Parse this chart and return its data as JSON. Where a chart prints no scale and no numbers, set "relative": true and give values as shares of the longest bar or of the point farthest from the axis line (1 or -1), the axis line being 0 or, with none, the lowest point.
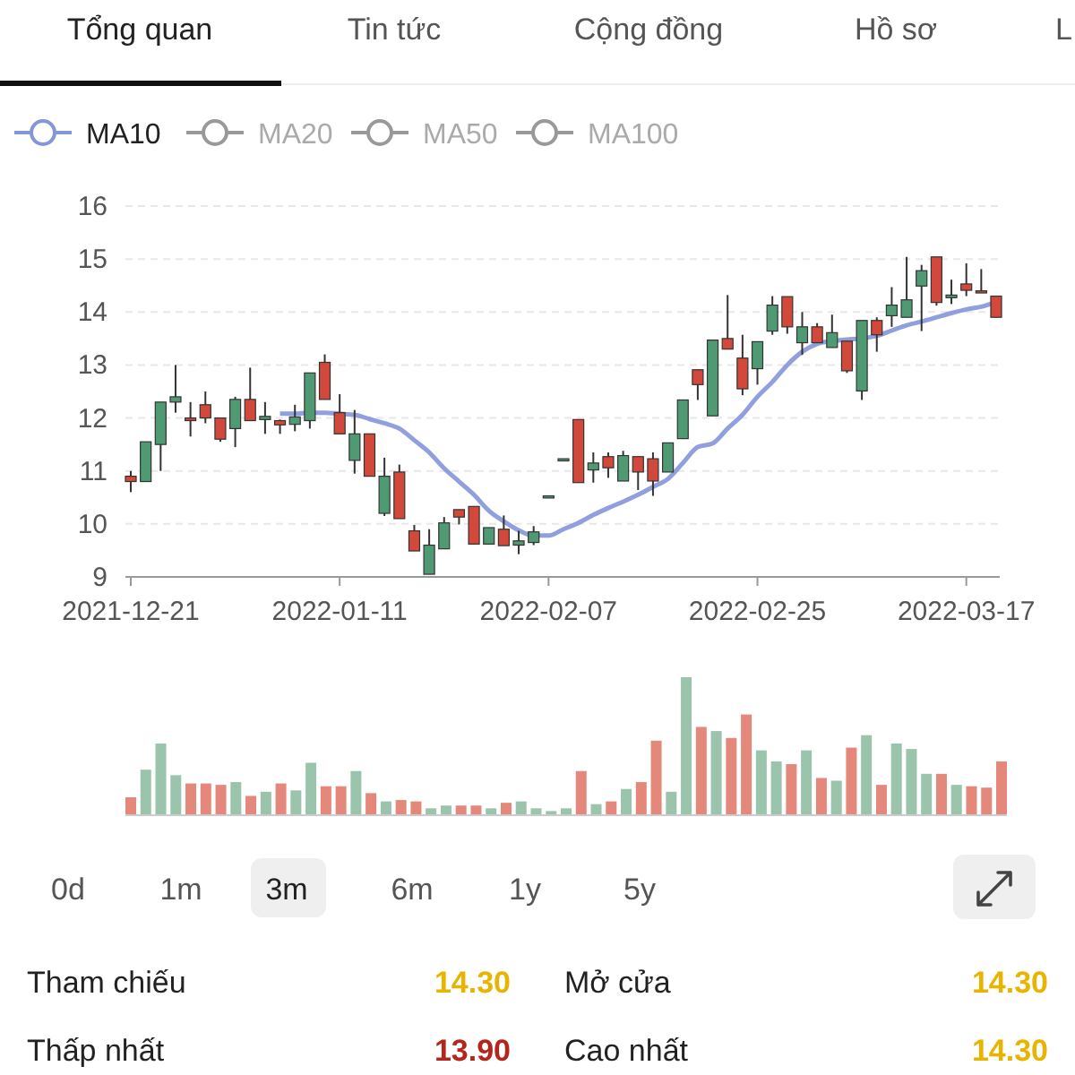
{
  "chart_data": [
    {
      "type": "other",
      "annotations": [
        "Tổng quan",
        "Tin tức",
        "Cộng đồng",
        "Hồ sơ",
        "L"
      ]
    },
    {
      "type": "candlestick",
      "legend": "top left",
      "grid": "y",
      "ylim": [
        9,
        16
      ],
      "yticks": [
        9,
        10,
        11,
        12,
        13,
        14,
        15,
        16
      ],
      "categories": [
        "2021-12-21",
        null,
        null,
        null,
        null,
        null,
        null,
        null,
        null,
        null,
        null,
        null,
        null,
        null,
        "2022-01-11",
        null,
        null,
        null,
        null,
        null,
        null,
        null,
        null,
        null,
        null,
        null,
        null,
        null,
        "2022-02-07",
        null,
        null,
        null,
        null,
        null,
        null,
        null,
        null,
        null,
        null,
        null,
        null,
        null,
        "2022-02-25",
        null,
        null,
        null,
        null,
        null,
        null,
        null,
        null,
        null,
        null,
        null,
        null,
        null,
        "2022-03-17",
        null,
        null
      ],
      "ohlc": [
        [
          10.9,
          11.0,
          10.6,
          10.8
        ],
        [
          10.8,
          11.55,
          10.8,
          11.55
        ],
        [
          11.5,
          12.3,
          11.0,
          12.3
        ],
        [
          12.3,
          13.0,
          12.1,
          12.4
        ],
        [
          12.0,
          12.3,
          11.65,
          11.95
        ],
        [
          12.25,
          12.5,
          11.9,
          12.0
        ],
        [
          12.0,
          12.0,
          11.55,
          11.6
        ],
        [
          11.8,
          12.4,
          11.45,
          12.35
        ],
        [
          12.35,
          12.95,
          11.95,
          11.95
        ],
        [
          11.97,
          12.3,
          11.7,
          12.03
        ],
        [
          11.95,
          11.97,
          11.7,
          11.87
        ],
        [
          11.88,
          12.25,
          11.75,
          12.02
        ],
        [
          11.95,
          12.85,
          11.8,
          12.85
        ],
        [
          13.05,
          13.2,
          12.35,
          12.35
        ],
        [
          12.1,
          12.45,
          11.7,
          11.7
        ],
        [
          11.2,
          12.15,
          10.95,
          11.7
        ],
        [
          11.7,
          11.7,
          10.9,
          10.9
        ],
        [
          10.2,
          11.25,
          10.15,
          10.9
        ],
        [
          10.98,
          11.12,
          10.1,
          10.1
        ],
        [
          9.87,
          9.98,
          9.49,
          9.49
        ],
        [
          9.05,
          9.9,
          9.05,
          9.6
        ],
        [
          9.53,
          10.13,
          9.53,
          10.02
        ],
        [
          10.27,
          10.27,
          9.99,
          10.13
        ],
        [
          10.33,
          10.33,
          9.62,
          9.62
        ],
        [
          9.62,
          9.93,
          9.62,
          9.93
        ],
        [
          9.9,
          10.16,
          9.59,
          9.59
        ],
        [
          9.6,
          9.87,
          9.43,
          9.68
        ],
        [
          9.65,
          9.96,
          9.6,
          9.85
        ],
        [
          10.53,
          10.53,
          10.53,
          10.53
        ],
        [
          11.23,
          11.23,
          11.23,
          11.23
        ],
        [
          11.97,
          11.97,
          10.78,
          10.78
        ],
        [
          11.02,
          11.35,
          10.78,
          11.15
        ],
        [
          11.27,
          11.35,
          10.87,
          11.06
        ],
        [
          10.81,
          11.38,
          10.81,
          11.29
        ],
        [
          11.27,
          11.27,
          10.64,
          10.98
        ],
        [
          11.23,
          11.35,
          10.53,
          10.81
        ],
        [
          10.98,
          11.53,
          10.98,
          11.53
        ],
        [
          11.61,
          12.34,
          11.61,
          12.34
        ],
        [
          12.91,
          12.91,
          12.34,
          12.63
        ],
        [
          12.04,
          13.47,
          12.04,
          13.47
        ],
        [
          13.5,
          14.32,
          13.3,
          13.3
        ],
        [
          13.13,
          13.57,
          12.43,
          12.55
        ],
        [
          12.93,
          13.44,
          12.63,
          13.44
        ],
        [
          13.64,
          14.3,
          13.57,
          14.13
        ],
        [
          14.29,
          14.29,
          13.59,
          13.72
        ],
        [
          13.42,
          14.0,
          13.19,
          13.72
        ],
        [
          13.72,
          13.79,
          13.42,
          13.42
        ],
        [
          13.33,
          13.95,
          13.33,
          13.61
        ],
        [
          13.45,
          13.45,
          12.85,
          12.89
        ],
        [
          12.51,
          13.84,
          12.34,
          13.84
        ],
        [
          13.84,
          13.9,
          13.25,
          13.57
        ],
        [
          13.93,
          14.47,
          13.72,
          14.13
        ],
        [
          13.9,
          15.04,
          13.9,
          14.23
        ],
        [
          14.49,
          14.89,
          13.64,
          14.78
        ],
        [
          15.04,
          15.04,
          14.12,
          14.18
        ],
        [
          14.27,
          14.61,
          14.15,
          14.32
        ],
        [
          14.53,
          14.92,
          14.3,
          14.41
        ],
        [
          14.4,
          14.81,
          14.36,
          14.36
        ],
        [
          14.3,
          14.3,
          13.9,
          13.9
        ]
      ],
      "series": [
        {
          "type": "line",
          "name": "MA10",
          "color": "#8595da",
          "values": [
            null,
            null,
            null,
            null,
            null,
            null,
            null,
            null,
            null,
            null,
            12.08,
            12.08,
            12.1,
            12.1,
            12.08,
            12.06,
            11.98,
            11.9,
            11.8,
            11.58,
            11.35,
            11.05,
            10.8,
            10.55,
            10.25,
            10.05,
            9.88,
            9.78,
            9.78,
            9.9,
            10.02,
            10.17,
            10.3,
            10.42,
            10.55,
            10.7,
            10.85,
            11.15,
            11.45,
            11.52,
            11.8,
            12.06,
            12.4,
            12.68,
            13.0,
            13.25,
            13.4,
            13.45,
            13.48,
            13.5,
            13.55,
            13.65,
            13.75,
            13.82,
            13.9,
            13.98,
            14.05,
            14.1,
            14.19
          ]
        },
        {
          "type": "line",
          "name": "MA20",
          "color": "#999999",
          "values": [
            null,
            null,
            null,
            null,
            null,
            null,
            null,
            null,
            null,
            null,
            null,
            null,
            null,
            null,
            null,
            null,
            null,
            null,
            null,
            null,
            null,
            null,
            null,
            null,
            null,
            null,
            null,
            null,
            null,
            null,
            null,
            null,
            null,
            null,
            null,
            null,
            null,
            null,
            null,
            null,
            null,
            null,
            null,
            null,
            null,
            null,
            null,
            null,
            null,
            null,
            null,
            null,
            null,
            null,
            null,
            null,
            null,
            null,
            null
          ]
        },
        {
          "type": "line",
          "name": "MA50",
          "color": "#999999",
          "values": [
            null,
            null,
            null,
            null,
            null,
            null,
            null,
            null,
            null,
            null,
            null,
            null,
            null,
            null,
            null,
            null,
            null,
            null,
            null,
            null,
            null,
            null,
            null,
            null,
            null,
            null,
            null,
            null,
            null,
            null,
            null,
            null,
            null,
            null,
            null,
            null,
            null,
            null,
            null,
            null,
            null,
            null,
            null,
            null,
            null,
            null,
            null,
            null,
            null,
            null,
            null,
            null,
            null,
            null,
            null,
            null,
            null,
            null,
            null
          ]
        },
        {
          "type": "line",
          "name": "MA100",
          "color": "#999999",
          "values": [
            null,
            null,
            null,
            null,
            null,
            null,
            null,
            null,
            null,
            null,
            null,
            null,
            null,
            null,
            null,
            null,
            null,
            null,
            null,
            null,
            null,
            null,
            null,
            null,
            null,
            null,
            null,
            null,
            null,
            null,
            null,
            null,
            null,
            null,
            null,
            null,
            null,
            null,
            null,
            null,
            null,
            null,
            null,
            null,
            null,
            null,
            null,
            null,
            null,
            null,
            null,
            null,
            null,
            null,
            null,
            null,
            null,
            null,
            null
          ]
        }
      ]
    },
    {
      "type": "bar",
      "relative": true,
      "categories": [
        null,
        null,
        null,
        null,
        null,
        null,
        null,
        null,
        null,
        null,
        null,
        null,
        null,
        null,
        null,
        null,
        null,
        null,
        null,
        null,
        null,
        null,
        null,
        null,
        null,
        null,
        null,
        null,
        null,
        null,
        null,
        null,
        null,
        null,
        null,
        null,
        null,
        null,
        null,
        null,
        null,
        null,
        null,
        null,
        null,
        null,
        null,
        null,
        null,
        null,
        null,
        null,
        null,
        null,
        null,
        null,
        null,
        null,
        null
      ],
      "values": [
        0.13,
        0.33,
        0.52,
        0.29,
        0.23,
        0.23,
        0.22,
        0.24,
        0.14,
        0.17,
        0.23,
        0.18,
        0.38,
        0.21,
        0.21,
        0.32,
        0.16,
        0.1,
        0.11,
        0.1,
        0.05,
        0.07,
        0.07,
        0.07,
        0.05,
        0.09,
        0.1,
        0.05,
        0.03,
        0.05,
        0.32,
        0.08,
        0.1,
        0.19,
        0.24,
        0.54,
        0.17,
        1,
        0.64,
        0.61,
        0.56,
        0.73,
        0.47,
        0.39,
        0.37,
        0.47,
        0.27,
        0.25,
        0.49,
        0.58,
        0.22,
        0.52,
        0.48,
        0.3,
        0.3,
        0.22,
        0.21,
        0.2,
        0.39
      ],
      "colors": [
        "#e4887c",
        "#9bc4ad",
        "#9bc4ad",
        "#9bc4ad",
        "#e4887c",
        "#e4887c",
        "#e4887c",
        "#9bc4ad",
        "#e4887c",
        "#9bc4ad",
        "#e4887c",
        "#9bc4ad",
        "#9bc4ad",
        "#e4887c",
        "#e4887c",
        "#9bc4ad",
        "#e4887c",
        "#9bc4ad",
        "#e4887c",
        "#e4887c",
        "#9bc4ad",
        "#9bc4ad",
        "#e4887c",
        "#e4887c",
        "#9bc4ad",
        "#e4887c",
        "#9bc4ad",
        "#9bc4ad",
        "#9bc4ad",
        "#9bc4ad",
        "#e4887c",
        "#9bc4ad",
        "#e4887c",
        "#9bc4ad",
        "#e4887c",
        "#e4887c",
        "#9bc4ad",
        "#9bc4ad",
        "#e4887c",
        "#9bc4ad",
        "#e4887c",
        "#e4887c",
        "#9bc4ad",
        "#9bc4ad",
        "#e4887c",
        "#9bc4ad",
        "#e4887c",
        "#9bc4ad",
        "#e4887c",
        "#9bc4ad",
        "#e4887c",
        "#9bc4ad",
        "#9bc4ad",
        "#9bc4ad",
        "#e4887c",
        "#9bc4ad",
        "#e4887c",
        "#e4887c",
        "#e4887c"
      ]
    },
    {
      "type": "other",
      "annotations": [
        "0d",
        "1m",
        "3m",
        "6m",
        "1y",
        "5y"
      ]
    },
    {
      "type": "other",
      "annotations": [
        "Tham chiếu",
        "14.30",
        "Mở cửa",
        "14.30",
        "Thấp nhất",
        "13.90",
        "Cao nhất",
        "14.30"
      ]
    }
  ]
}
